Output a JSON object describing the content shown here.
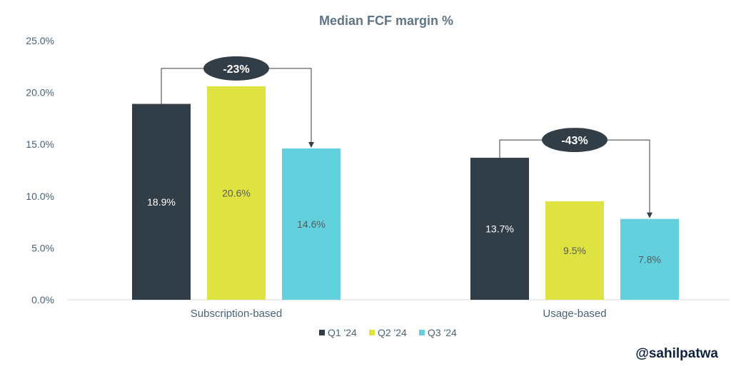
{
  "chart_data": {
    "type": "bar",
    "title": "Median FCF margin %",
    "categories": [
      "Subscription-based",
      "Usage-based"
    ],
    "series": [
      {
        "name": "Q1 '24",
        "values": [
          18.9,
          13.7
        ],
        "labels": [
          "18.9%",
          "13.7%"
        ],
        "color": "#323e47",
        "label_color": "#ffffff"
      },
      {
        "name": "Q2 '24",
        "values": [
          20.6,
          9.5
        ],
        "labels": [
          "20.6%",
          "9.5%"
        ],
        "color": "#dfe342",
        "label_color": "#595959"
      },
      {
        "name": "Q3 '24",
        "values": [
          14.6,
          7.8
        ],
        "labels": [
          "14.6%",
          "7.8%"
        ],
        "color": "#63d0dd",
        "label_color": "#595959"
      }
    ],
    "ylim": [
      0,
      25
    ],
    "yticks": [
      "0.0%",
      "5.0%",
      "10.0%",
      "15.0%",
      "20.0%",
      "25.0%"
    ],
    "ytick_values": [
      0,
      5,
      10,
      15,
      20,
      25
    ],
    "grid": false,
    "legend_position": "bottom",
    "annotations": [
      {
        "text": "-23%",
        "category": "Subscription-based",
        "from_series": "Q1 '24",
        "to_series": "Q3 '24"
      },
      {
        "text": "-43%",
        "category": "Usage-based",
        "from_series": "Q1 '24",
        "to_series": "Q3 '24"
      }
    ],
    "title_color": "#5f7587",
    "axis_text_color": "#4a6275"
  },
  "footer": {
    "handle": "@sahilpatwa"
  }
}
